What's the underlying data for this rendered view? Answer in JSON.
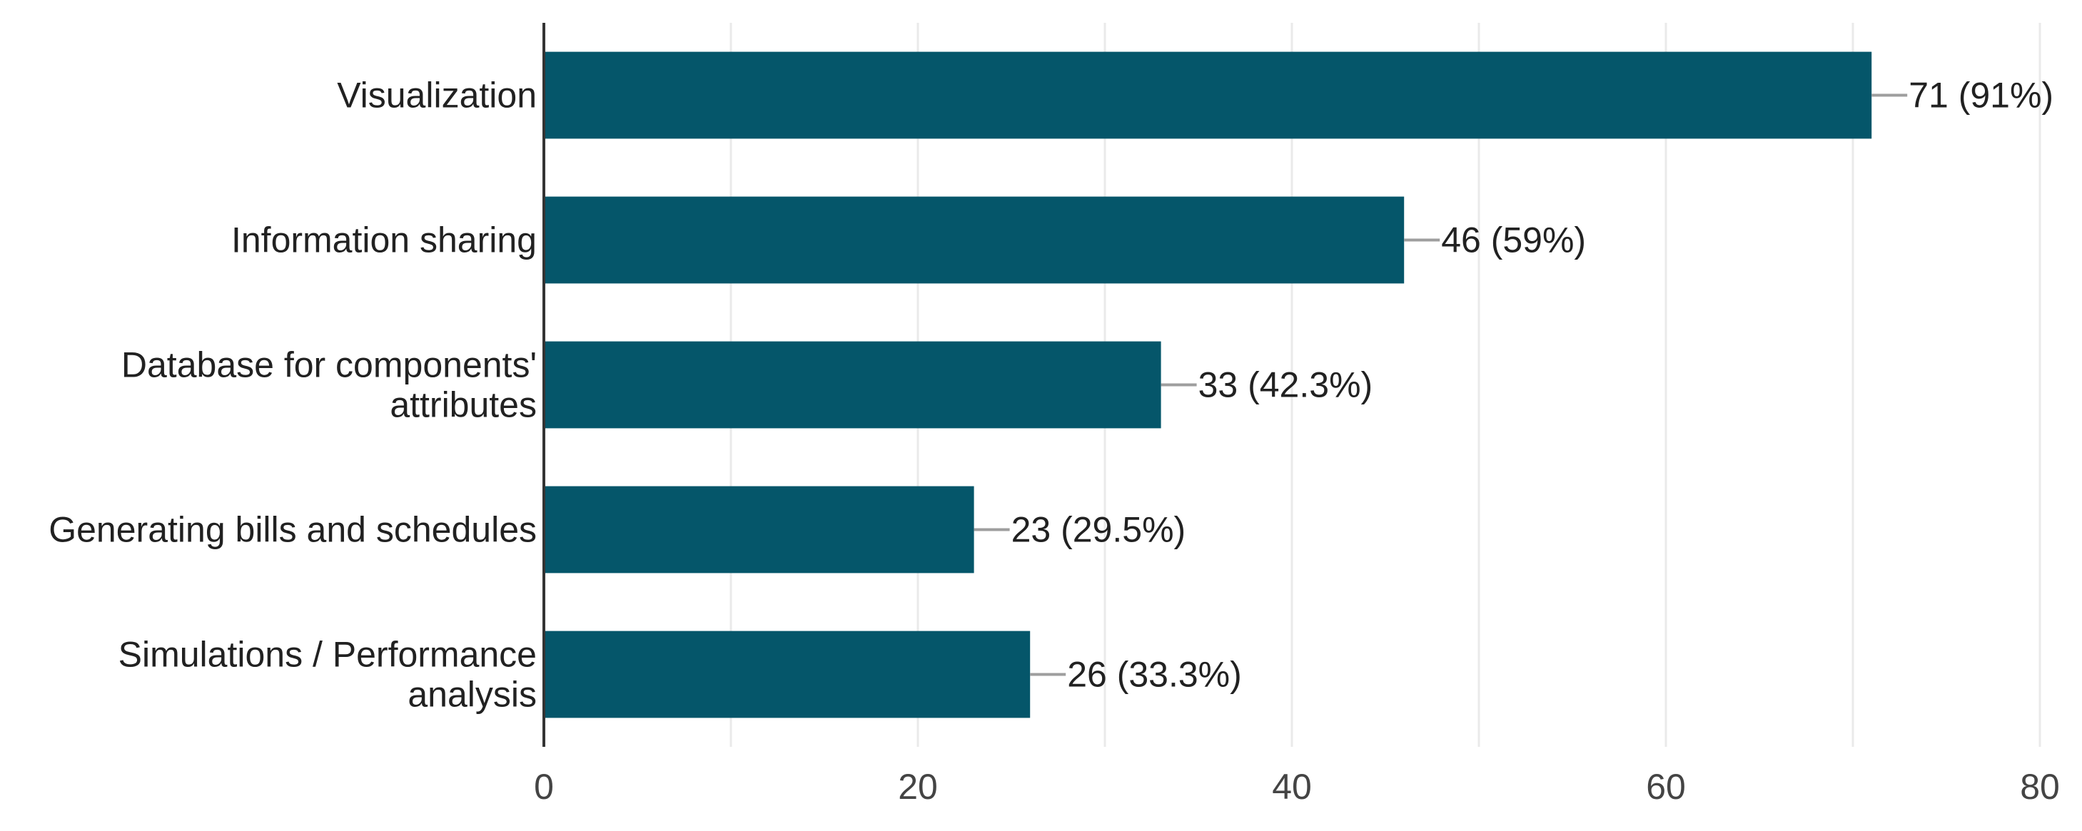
{
  "chart_data": {
    "type": "bar",
    "orientation": "horizontal",
    "title": "",
    "xlabel": "",
    "ylabel": "",
    "categories": [
      [
        "Visualization"
      ],
      [
        "Information sharing"
      ],
      [
        "Database for components'",
        "attributes"
      ],
      [
        "Generating bills and schedules"
      ],
      [
        "Simulations / Performance",
        "analysis"
      ]
    ],
    "values": [
      71,
      46,
      33,
      23,
      26
    ],
    "data_labels": [
      "71 (91%)",
      "46 (59%)",
      "33 (42.3%)",
      "23 (29.5%)",
      "26 (33.3%)"
    ],
    "xlim": [
      0,
      80
    ],
    "xticks": [
      0,
      20,
      40,
      60,
      80
    ],
    "xtick_labels": [
      "0",
      "20",
      "40",
      "60",
      "80"
    ],
    "grid": true,
    "legend": "none",
    "colors": {
      "bar": "#05566a",
      "grid": "#eaeaea",
      "axis": "#333333",
      "leader": "#9e9e9e"
    }
  }
}
